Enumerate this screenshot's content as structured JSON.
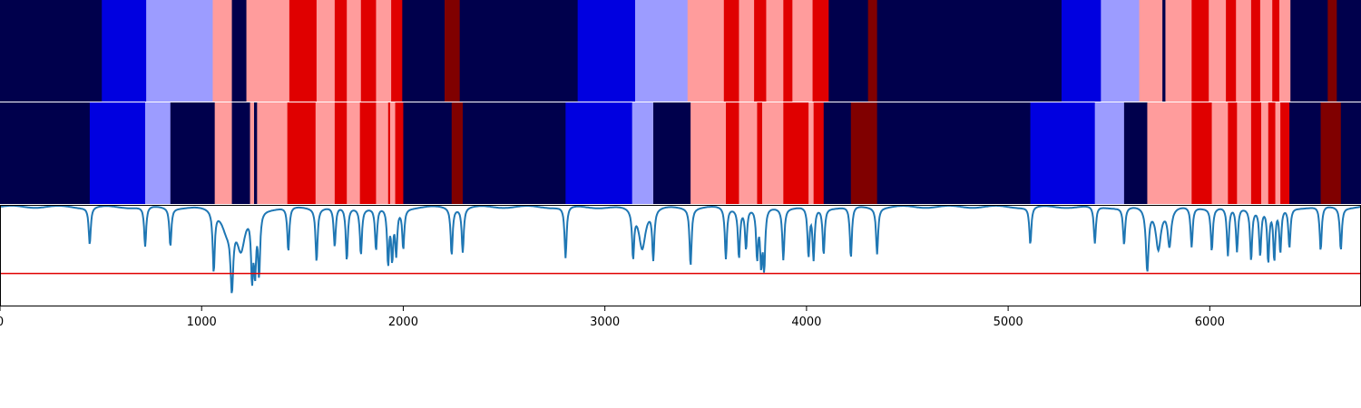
{
  "chart_data": [
    {
      "type": "heatmap",
      "panel": "top-segmentation",
      "xlim": [
        0,
        6750
      ],
      "colors": {
        "0": "#00004c",
        "1": "#0000e0",
        "2": "#9c9cff",
        "3": "#ff9c9c",
        "4": "#e00000",
        "5": "#800000"
      },
      "segments": [
        [
          0,
          505,
          0
        ],
        [
          505,
          725,
          1
        ],
        [
          725,
          1055,
          2
        ],
        [
          1055,
          1150,
          3
        ],
        [
          1150,
          1222,
          0
        ],
        [
          1222,
          1435,
          3
        ],
        [
          1435,
          1570,
          4
        ],
        [
          1570,
          1660,
          3
        ],
        [
          1660,
          1720,
          4
        ],
        [
          1720,
          1790,
          3
        ],
        [
          1790,
          1865,
          4
        ],
        [
          1865,
          1940,
          3
        ],
        [
          1940,
          1995,
          4
        ],
        [
          1995,
          2205,
          0
        ],
        [
          2205,
          2280,
          5
        ],
        [
          2280,
          2865,
          0
        ],
        [
          2865,
          3150,
          1
        ],
        [
          3150,
          3410,
          2
        ],
        [
          3410,
          3590,
          3
        ],
        [
          3590,
          3665,
          4
        ],
        [
          3665,
          3740,
          3
        ],
        [
          3740,
          3800,
          4
        ],
        [
          3800,
          3885,
          3
        ],
        [
          3885,
          3930,
          4
        ],
        [
          3930,
          4030,
          3
        ],
        [
          4030,
          4110,
          4
        ],
        [
          4110,
          4305,
          0
        ],
        [
          4305,
          4350,
          5
        ],
        [
          4350,
          5265,
          0
        ],
        [
          5265,
          5460,
          1
        ],
        [
          5460,
          5650,
          2
        ],
        [
          5650,
          5765,
          3
        ],
        [
          5765,
          5780,
          0
        ],
        [
          5780,
          5910,
          3
        ],
        [
          5910,
          5995,
          4
        ],
        [
          5995,
          6080,
          3
        ],
        [
          6080,
          6130,
          4
        ],
        [
          6130,
          6205,
          3
        ],
        [
          6205,
          6250,
          4
        ],
        [
          6250,
          6310,
          3
        ],
        [
          6310,
          6345,
          4
        ],
        [
          6345,
          6400,
          3
        ],
        [
          6400,
          6585,
          0
        ],
        [
          6585,
          6630,
          5
        ],
        [
          6630,
          6750,
          0
        ]
      ]
    },
    {
      "type": "heatmap",
      "panel": "middle-segmentation",
      "xlim": [
        0,
        6750
      ],
      "colors": {
        "0": "#00004c",
        "1": "#0000e0",
        "2": "#9c9cff",
        "3": "#ff9c9c",
        "4": "#e00000",
        "5": "#800000"
      },
      "segments": [
        [
          0,
          445,
          0
        ],
        [
          445,
          720,
          1
        ],
        [
          720,
          845,
          2
        ],
        [
          845,
          1065,
          0
        ],
        [
          1065,
          1150,
          3
        ],
        [
          1150,
          1240,
          0
        ],
        [
          1240,
          1260,
          3
        ],
        [
          1260,
          1275,
          0
        ],
        [
          1275,
          1285,
          3
        ],
        [
          1285,
          1425,
          3
        ],
        [
          1425,
          1565,
          4
        ],
        [
          1565,
          1660,
          3
        ],
        [
          1660,
          1720,
          4
        ],
        [
          1720,
          1785,
          3
        ],
        [
          1785,
          1865,
          4
        ],
        [
          1865,
          1925,
          3
        ],
        [
          1925,
          1935,
          4
        ],
        [
          1935,
          1960,
          3
        ],
        [
          1960,
          2000,
          4
        ],
        [
          2000,
          2240,
          0
        ],
        [
          2240,
          2295,
          5
        ],
        [
          2295,
          2805,
          0
        ],
        [
          2805,
          3135,
          1
        ],
        [
          3135,
          3240,
          2
        ],
        [
          3240,
          3425,
          0
        ],
        [
          3425,
          3600,
          3
        ],
        [
          3600,
          3665,
          4
        ],
        [
          3665,
          3755,
          3
        ],
        [
          3755,
          3780,
          4
        ],
        [
          3780,
          3885,
          3
        ],
        [
          3885,
          4010,
          4
        ],
        [
          4010,
          4035,
          3
        ],
        [
          4035,
          4085,
          4
        ],
        [
          4085,
          4220,
          0
        ],
        [
          4220,
          4350,
          5
        ],
        [
          4350,
          5110,
          0
        ],
        [
          5110,
          5430,
          1
        ],
        [
          5430,
          5575,
          2
        ],
        [
          5575,
          5690,
          0
        ],
        [
          5690,
          5910,
          3
        ],
        [
          5910,
          6010,
          4
        ],
        [
          6010,
          6090,
          3
        ],
        [
          6090,
          6135,
          4
        ],
        [
          6135,
          6205,
          3
        ],
        [
          6205,
          6255,
          4
        ],
        [
          6255,
          6290,
          3
        ],
        [
          6290,
          6325,
          4
        ],
        [
          6325,
          6350,
          3
        ],
        [
          6350,
          6395,
          4
        ],
        [
          6395,
          6550,
          0
        ],
        [
          6550,
          6650,
          5
        ],
        [
          6650,
          6750,
          0
        ]
      ]
    },
    {
      "type": "line",
      "panel": "bottom-signal",
      "xlim": [
        0,
        6750
      ],
      "ylim": [
        -0.12,
        1.02
      ],
      "threshold": 0.25,
      "baseline": 1.0,
      "series_color": "#1f77b4",
      "threshold_color": "#e00000",
      "dips": [
        [
          445,
          0.58,
          6
        ],
        [
          720,
          0.55,
          6
        ],
        [
          845,
          0.57,
          6
        ],
        [
          1060,
          0.32,
          6
        ],
        [
          1125,
          0.78,
          30
        ],
        [
          1150,
          0.27,
          8
        ],
        [
          1195,
          0.55,
          25
        ],
        [
          1250,
          0.3,
          6
        ],
        [
          1265,
          0.36,
          6
        ],
        [
          1285,
          0.31,
          6
        ],
        [
          1430,
          0.5,
          6
        ],
        [
          1570,
          0.4,
          6
        ],
        [
          1660,
          0.55,
          6
        ],
        [
          1720,
          0.4,
          6
        ],
        [
          1790,
          0.48,
          6
        ],
        [
          1865,
          0.52,
          6
        ],
        [
          1925,
          0.38,
          6
        ],
        [
          1945,
          0.45,
          6
        ],
        [
          1965,
          0.5,
          6
        ],
        [
          2000,
          0.55,
          6
        ],
        [
          2240,
          0.47,
          6
        ],
        [
          2295,
          0.5,
          6
        ],
        [
          2805,
          0.42,
          6
        ],
        [
          3140,
          0.48,
          6
        ],
        [
          3185,
          0.55,
          20
        ],
        [
          3240,
          0.45,
          6
        ],
        [
          3425,
          0.35,
          6
        ],
        [
          3600,
          0.42,
          6
        ],
        [
          3665,
          0.45,
          6
        ],
        [
          3700,
          0.55,
          6
        ],
        [
          3755,
          0.45,
          6
        ],
        [
          3775,
          0.4,
          6
        ],
        [
          3790,
          0.35,
          6
        ],
        [
          3885,
          0.42,
          6
        ],
        [
          4010,
          0.45,
          6
        ],
        [
          4035,
          0.42,
          6
        ],
        [
          4085,
          0.48,
          6
        ],
        [
          4220,
          0.42,
          6
        ],
        [
          4350,
          0.48,
          6
        ],
        [
          5110,
          0.58,
          6
        ],
        [
          5430,
          0.58,
          6
        ],
        [
          5575,
          0.58,
          6
        ],
        [
          5690,
          0.3,
          8
        ],
        [
          5745,
          0.55,
          15
        ],
        [
          5800,
          0.58,
          10
        ],
        [
          5910,
          0.55,
          6
        ],
        [
          6010,
          0.52,
          6
        ],
        [
          6090,
          0.45,
          6
        ],
        [
          6135,
          0.5,
          6
        ],
        [
          6205,
          0.42,
          6
        ],
        [
          6250,
          0.48,
          6
        ],
        [
          6290,
          0.4,
          6
        ],
        [
          6320,
          0.42,
          6
        ],
        [
          6350,
          0.5,
          6
        ],
        [
          6395,
          0.55,
          6
        ],
        [
          6550,
          0.5,
          6
        ],
        [
          6650,
          0.52,
          6
        ]
      ],
      "xticks": [
        0,
        1000,
        2000,
        3000,
        4000,
        5000,
        6000
      ],
      "xtick_labels": [
        "0",
        "1000",
        "2000",
        "3000",
        "4000",
        "5000",
        "6000"
      ]
    }
  ]
}
